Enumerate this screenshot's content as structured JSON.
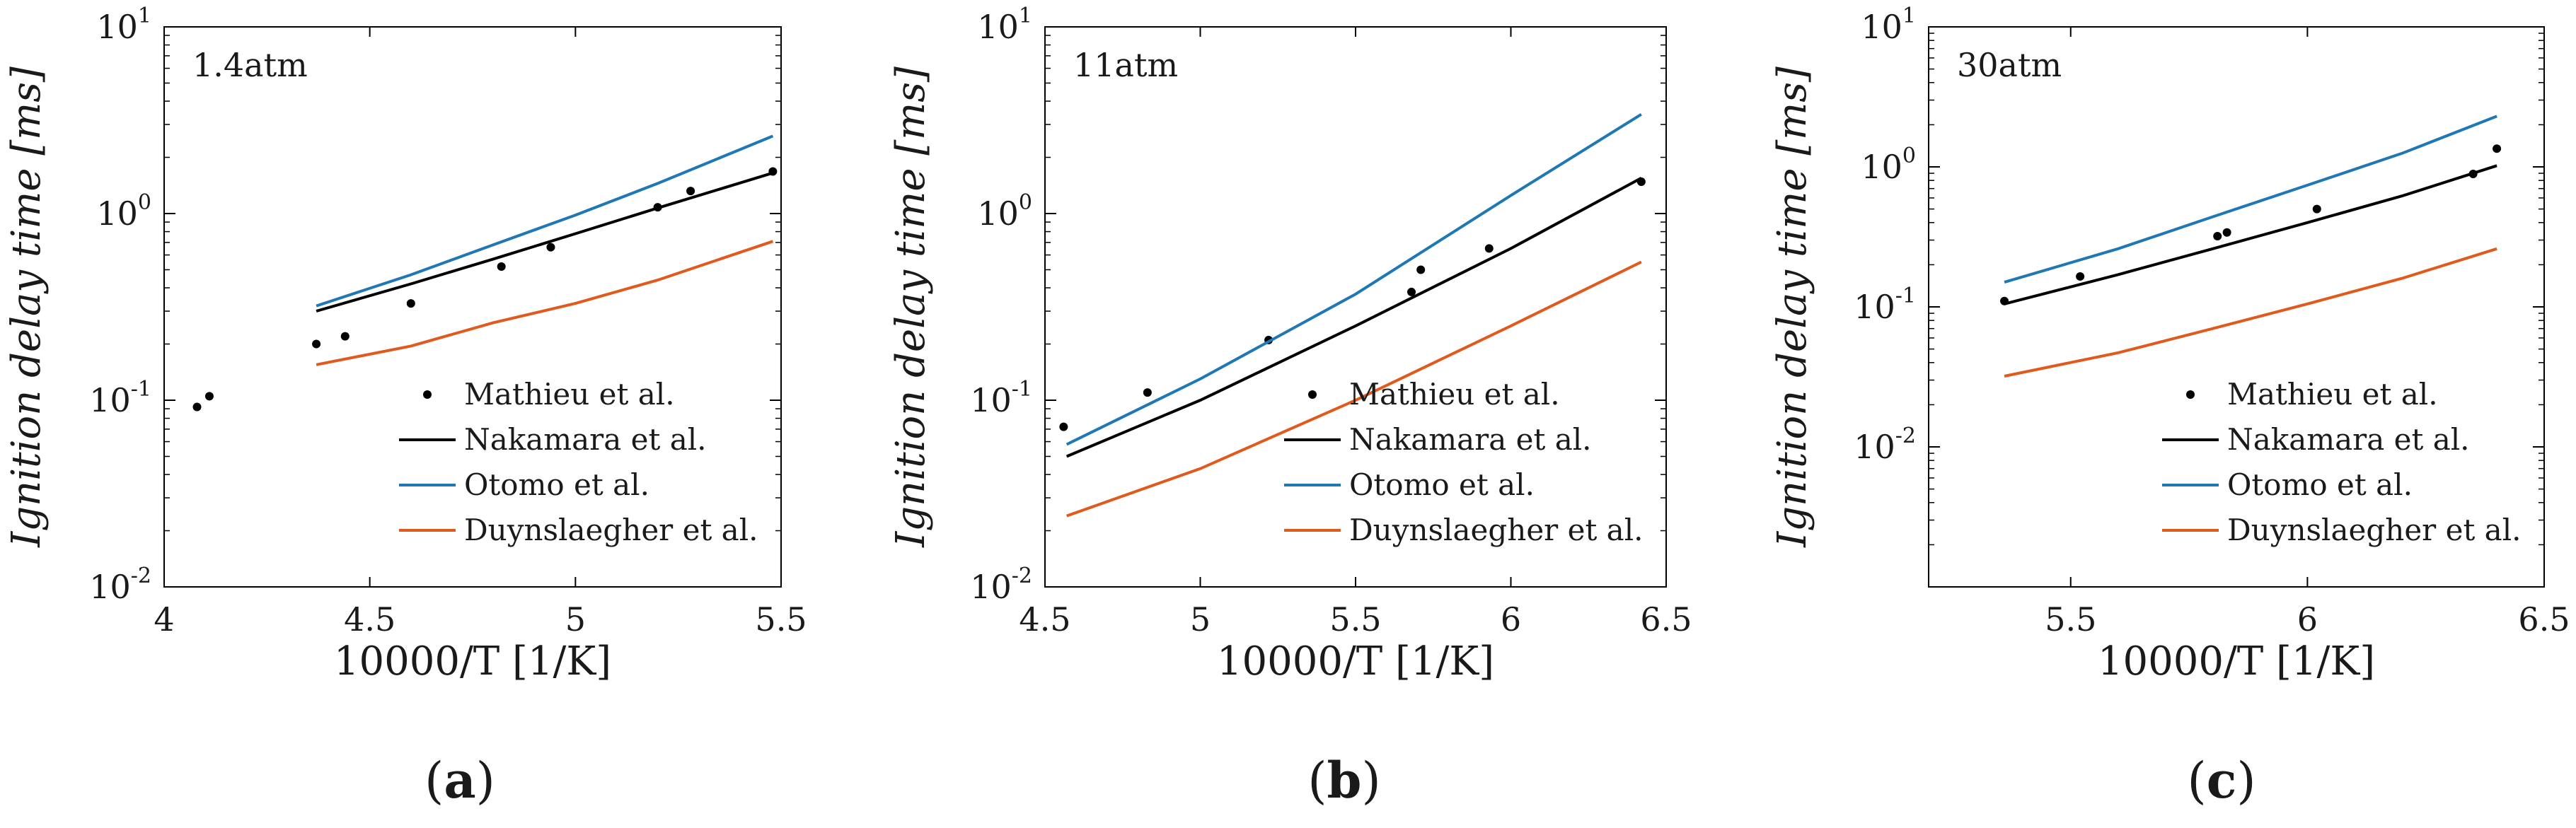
{
  "chart_data": [
    {
      "type": "line",
      "panel": "a",
      "pressure_label": "1.4atm",
      "xlabel": "10000/T [1/K]",
      "ylabel": "Ignition delay time [ms]",
      "yscale": "log",
      "xlim": [
        4.0,
        5.5
      ],
      "ylim": [
        0.01,
        10
      ],
      "xticks": [
        "4",
        "4.5",
        "5",
        "5.5"
      ],
      "yticks_base": "10",
      "yticks_exp": [
        "1",
        "0",
        "-1",
        "-2"
      ],
      "legend_position": "bottom-right",
      "series": [
        {
          "name": "Mathieu et al.",
          "kind": "scatter",
          "color": "#000000",
          "x": [
            4.08,
            4.11,
            4.37,
            4.44,
            4.6,
            4.82,
            4.94,
            5.2,
            5.28,
            5.48
          ],
          "y": [
            0.092,
            0.105,
            0.2,
            0.22,
            0.33,
            0.52,
            0.66,
            1.08,
            1.32,
            1.68
          ]
        },
        {
          "name": "Nakamara et al.",
          "kind": "line",
          "color": "#000000",
          "x": [
            4.37,
            4.6,
            4.8,
            5.0,
            5.2,
            5.48
          ],
          "y": [
            0.3,
            0.42,
            0.57,
            0.78,
            1.07,
            1.65
          ]
        },
        {
          "name": "Otomo et al.",
          "kind": "line",
          "color": "#1f77b4",
          "x": [
            4.37,
            4.6,
            4.8,
            5.0,
            5.2,
            5.48
          ],
          "y": [
            0.32,
            0.47,
            0.68,
            0.98,
            1.45,
            2.6
          ]
        },
        {
          "name": "Duynslaegher et al.",
          "kind": "line",
          "color": "#e05a1e",
          "x": [
            4.37,
            4.6,
            4.8,
            5.0,
            5.2,
            5.48
          ],
          "y": [
            0.155,
            0.195,
            0.26,
            0.33,
            0.44,
            0.71
          ]
        }
      ]
    },
    {
      "type": "line",
      "panel": "b",
      "pressure_label": "11atm",
      "xlabel": "10000/T [1/K]",
      "ylabel": "Ignition delay time [ms]",
      "yscale": "log",
      "xlim": [
        4.5,
        6.5
      ],
      "ylim": [
        0.01,
        10
      ],
      "xticks": [
        "4.5",
        "5",
        "5.5",
        "6",
        "6.5"
      ],
      "yticks_base": "10",
      "yticks_exp": [
        "1",
        "0",
        "-1",
        "-2"
      ],
      "legend_position": "bottom-right",
      "series": [
        {
          "name": "Mathieu et al.",
          "kind": "scatter",
          "color": "#000000",
          "x": [
            4.56,
            4.83,
            5.22,
            5.68,
            5.71,
            5.93,
            6.42
          ],
          "y": [
            0.072,
            0.11,
            0.21,
            0.38,
            0.5,
            0.65,
            1.48
          ]
        },
        {
          "name": "Nakamara et al.",
          "kind": "line",
          "color": "#000000",
          "x": [
            4.57,
            5.0,
            5.5,
            6.0,
            6.42
          ],
          "y": [
            0.05,
            0.1,
            0.25,
            0.65,
            1.55
          ]
        },
        {
          "name": "Otomo et al.",
          "kind": "line",
          "color": "#1f77b4",
          "x": [
            4.57,
            5.0,
            5.5,
            6.0,
            6.42
          ],
          "y": [
            0.058,
            0.13,
            0.37,
            1.25,
            3.4
          ]
        },
        {
          "name": "Duynslaegher et al.",
          "kind": "line",
          "color": "#e05a1e",
          "x": [
            4.57,
            5.0,
            5.5,
            6.0,
            6.42
          ],
          "y": [
            0.024,
            0.043,
            0.1,
            0.25,
            0.55
          ]
        }
      ]
    },
    {
      "type": "line",
      "panel": "c",
      "pressure_label": "30atm",
      "xlabel": "10000/T [1/K]",
      "ylabel": "Ignition delay time [ms]",
      "yscale": "log",
      "xlim": [
        5.2,
        6.5
      ],
      "ylim": [
        0.001,
        10
      ],
      "xticks": [
        "5.5",
        "6",
        "6.5"
      ],
      "yticks_base": "10",
      "yticks_exp": [
        "1",
        "0",
        "-1",
        "-2"
      ],
      "legend_position": "bottom-right",
      "series": [
        {
          "name": "Mathieu et al.",
          "kind": "scatter",
          "color": "#000000",
          "x": [
            5.36,
            5.52,
            5.81,
            5.83,
            6.02,
            6.35,
            6.4
          ],
          "y": [
            0.11,
            0.165,
            0.32,
            0.34,
            0.5,
            0.89,
            1.35
          ]
        },
        {
          "name": "Nakamara et al.",
          "kind": "line",
          "color": "#000000",
          "x": [
            5.36,
            5.6,
            5.8,
            6.0,
            6.2,
            6.4
          ],
          "y": [
            0.105,
            0.17,
            0.26,
            0.4,
            0.62,
            1.02
          ]
        },
        {
          "name": "Otomo et al.",
          "kind": "line",
          "color": "#1f77b4",
          "x": [
            5.36,
            5.6,
            5.8,
            6.0,
            6.2,
            6.4
          ],
          "y": [
            0.15,
            0.26,
            0.44,
            0.74,
            1.25,
            2.3
          ]
        },
        {
          "name": "Duynslaegher et al.",
          "kind": "line",
          "color": "#e05a1e",
          "x": [
            5.36,
            5.6,
            5.8,
            6.0,
            6.2,
            6.4
          ],
          "y": [
            0.032,
            0.047,
            0.07,
            0.105,
            0.16,
            0.26
          ]
        }
      ]
    }
  ],
  "panel_tags": [
    "a",
    "b",
    "c"
  ]
}
